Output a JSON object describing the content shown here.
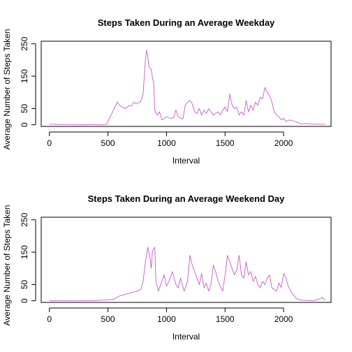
{
  "chart_data": [
    {
      "type": "line",
      "title": "Steps Taken During an Average Weekday",
      "xlabel": "Interval",
      "ylabel": "Average Number of Steps Taken",
      "xlim": [
        -70,
        2405
      ],
      "ylim": [
        -5,
        258
      ],
      "xticks": [
        0,
        500,
        1000,
        1500,
        2000
      ],
      "yticks": [
        0,
        50,
        150,
        250
      ],
      "color": "#c45bc8",
      "grid": false,
      "series": [
        {
          "x": [
            0,
            100,
            200,
            300,
            400,
            450,
            490,
            500,
            520,
            560,
            580,
            600,
            620,
            650,
            680,
            700,
            720,
            740,
            760,
            780,
            800,
            820,
            830,
            840,
            850,
            860,
            870,
            880,
            890,
            900,
            920,
            940,
            960,
            980,
            1000,
            1030,
            1060,
            1080,
            1100,
            1120,
            1140,
            1160,
            1180,
            1200,
            1220,
            1240,
            1260,
            1280,
            1300,
            1320,
            1340,
            1360,
            1380,
            1400,
            1420,
            1440,
            1460,
            1480,
            1500,
            1520,
            1540,
            1560,
            1580,
            1600,
            1620,
            1640,
            1660,
            1680,
            1700,
            1720,
            1740,
            1760,
            1780,
            1800,
            1820,
            1840,
            1860,
            1880,
            1900,
            1920,
            1940,
            1960,
            1980,
            2000,
            2020,
            2050,
            2100,
            2150,
            2200,
            2250,
            2300,
            2355
          ],
          "y": [
            2,
            1,
            1,
            0,
            1,
            0,
            2,
            10,
            25,
            55,
            70,
            60,
            55,
            50,
            60,
            58,
            70,
            65,
            68,
            72,
            95,
            200,
            230,
            210,
            180,
            175,
            170,
            145,
            130,
            45,
            30,
            40,
            15,
            20,
            25,
            20,
            22,
            45,
            25,
            20,
            18,
            60,
            70,
            75,
            65,
            40,
            35,
            50,
            30,
            45,
            35,
            50,
            40,
            30,
            35,
            40,
            30,
            45,
            55,
            40,
            95,
            60,
            50,
            55,
            30,
            40,
            30,
            75,
            40,
            60,
            45,
            70,
            60,
            85,
            80,
            115,
            100,
            90,
            70,
            40,
            30,
            25,
            15,
            20,
            10,
            15,
            10,
            3,
            4,
            2,
            2,
            1
          ]
        }
      ]
    },
    {
      "type": "line",
      "title": "Steps Taken During an Average Weekend Day",
      "xlabel": "Interval",
      "ylabel": "Average Number of Steps Taken",
      "xlim": [
        -70,
        2405
      ],
      "ylim": [
        -5,
        258
      ],
      "xticks": [
        0,
        500,
        1000,
        1500,
        2000
      ],
      "yticks": [
        0,
        50,
        150,
        250
      ],
      "color": "#c45bc8",
      "grid": false,
      "series": [
        {
          "x": [
            0,
            100,
            200,
            300,
            400,
            450,
            500,
            550,
            600,
            650,
            700,
            750,
            780,
            800,
            820,
            840,
            860,
            870,
            880,
            900,
            910,
            930,
            950,
            980,
            1000,
            1020,
            1050,
            1080,
            1100,
            1120,
            1150,
            1180,
            1200,
            1220,
            1240,
            1260,
            1280,
            1300,
            1320,
            1340,
            1360,
            1380,
            1400,
            1420,
            1440,
            1460,
            1480,
            1500,
            1520,
            1540,
            1560,
            1580,
            1600,
            1620,
            1640,
            1660,
            1680,
            1700,
            1720,
            1740,
            1760,
            1780,
            1800,
            1820,
            1840,
            1860,
            1880,
            1900,
            1920,
            1940,
            1960,
            1980,
            2000,
            2020,
            2040,
            2060,
            2080,
            2100,
            2120,
            2140,
            2160,
            2200,
            2250,
            2300,
            2330,
            2355
          ],
          "y": [
            0,
            0,
            0,
            0,
            1,
            2,
            3,
            5,
            15,
            20,
            25,
            30,
            35,
            60,
            120,
            165,
            130,
            100,
            155,
            165,
            60,
            30,
            50,
            80,
            45,
            60,
            90,
            50,
            40,
            70,
            30,
            60,
            140,
            110,
            90,
            70,
            50,
            85,
            40,
            55,
            30,
            50,
            110,
            90,
            60,
            45,
            30,
            80,
            140,
            120,
            100,
            80,
            95,
            140,
            80,
            70,
            120,
            80,
            90,
            60,
            75,
            50,
            40,
            60,
            50,
            70,
            80,
            40,
            35,
            30,
            55,
            40,
            85,
            70,
            45,
            30,
            20,
            10,
            5,
            3,
            2,
            1,
            0,
            5,
            10,
            2
          ]
        }
      ]
    }
  ]
}
